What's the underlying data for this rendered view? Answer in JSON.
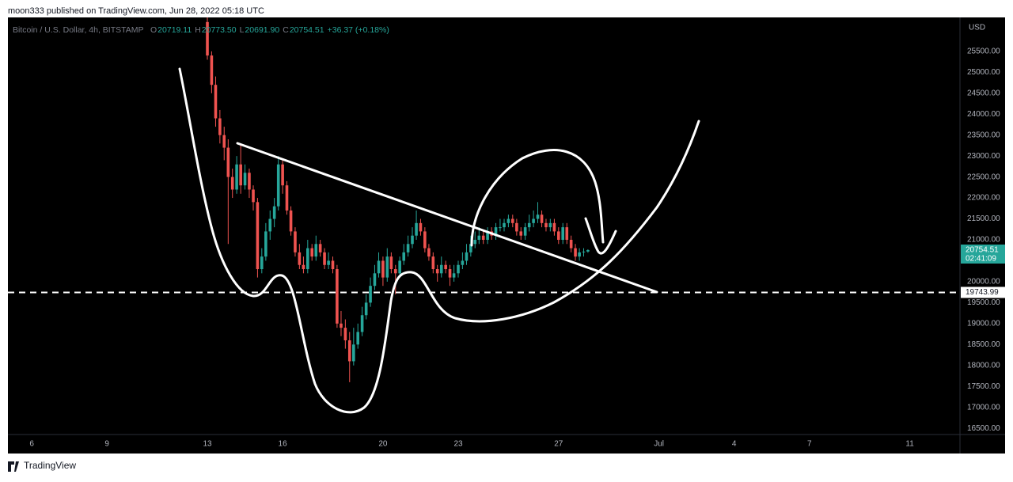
{
  "header": {
    "published": "moon333 published on TradingView.com, Jun 28, 2022 05:18 UTC"
  },
  "footer": {
    "brand": "TradingView"
  },
  "chart_data": {
    "type": "candlestick",
    "legend": {
      "symbol": "Bitcoin / U.S. Dollar, 4h, BITSTAMP",
      "items": [
        {
          "key": "O",
          "text": "20719.11"
        },
        {
          "key": "H",
          "text": "20773.50"
        },
        {
          "key": "L",
          "text": "20691.90"
        },
        {
          "key": "C",
          "text": "20754.51"
        }
      ],
      "change": "+36.37 (+0.18%)"
    },
    "y_axis_unit": "USD",
    "up_color": "#26a69a",
    "down_color": "#ef5350",
    "grid": false,
    "x": [
      13,
      13.17,
      13.33,
      13.5,
      13.67,
      13.83,
      14,
      14.17,
      14.33,
      14.5,
      14.67,
      14.83,
      15,
      15.17,
      15.33,
      15.5,
      15.67,
      15.83,
      16,
      16.17,
      16.33,
      16.5,
      16.67,
      16.83,
      17,
      17.17,
      17.33,
      17.5,
      17.67,
      17.83,
      18,
      18.17,
      18.33,
      18.5,
      18.67,
      18.83,
      19,
      19.17,
      19.33,
      19.5,
      19.67,
      19.83,
      20,
      20.17,
      20.33,
      20.5,
      20.67,
      20.83,
      21,
      21.17,
      21.33,
      21.5,
      21.67,
      21.83,
      22,
      22.17,
      22.33,
      22.5,
      22.67,
      22.83,
      23,
      23.17,
      23.33,
      23.5,
      23.67,
      23.83,
      24,
      24.17,
      24.33,
      24.5,
      24.67,
      24.83,
      25,
      25.17,
      25.33,
      25.5,
      25.67,
      25.83,
      26,
      26.17,
      26.33,
      26.5,
      26.67,
      26.83,
      27,
      27.17,
      27.33,
      27.5,
      27.67,
      27.83,
      28,
      28.17
    ],
    "open": [
      26200,
      25400,
      24700,
      23900,
      23500,
      23200,
      22500,
      22200,
      22800,
      22300,
      22600,
      22200,
      21900,
      20300,
      20600,
      21200,
      21500,
      21800,
      22800,
      22300,
      21700,
      21200,
      20700,
      20400,
      20300,
      20800,
      20600,
      20900,
      20700,
      20400,
      20500,
      20300,
      19000,
      18900,
      18600,
      18100,
      18500,
      18800,
      19200,
      19500,
      19900,
      20200,
      20500,
      20100,
      20600,
      20300,
      20200,
      20500,
      20700,
      20900,
      21100,
      21400,
      21200,
      20800,
      20600,
      20300,
      20200,
      20400,
      20300,
      20100,
      20200,
      20400,
      20500,
      20700,
      20900,
      21000,
      21100,
      21000,
      21200,
      21100,
      21300,
      21300,
      21400,
      21500,
      21400,
      21200,
      21100,
      21300,
      21400,
      21500,
      21600,
      21400,
      21300,
      21400,
      21200,
      21000,
      21300,
      21000,
      20800,
      20600,
      20700,
      20719.11
    ],
    "high": [
      26400,
      25500,
      24900,
      24100,
      23700,
      23400,
      22700,
      23000,
      23300,
      22800,
      22700,
      22300,
      22000,
      20800,
      21400,
      21700,
      22000,
      23000,
      22900,
      22400,
      21800,
      21300,
      20900,
      20600,
      21000,
      20900,
      21100,
      21000,
      20800,
      20700,
      20600,
      20400,
      19300,
      19100,
      18800,
      18900,
      19000,
      19400,
      19700,
      20100,
      20400,
      20700,
      20600,
      20800,
      20700,
      20400,
      20600,
      20900,
      21100,
      21300,
      21700,
      21500,
      21300,
      20900,
      20700,
      20400,
      20600,
      20500,
      20400,
      20400,
      20500,
      20700,
      20900,
      21100,
      21200,
      21300,
      21200,
      21300,
      21300,
      21400,
      21500,
      21500,
      21600,
      21600,
      21500,
      21300,
      21400,
      21600,
      21700,
      21900,
      21700,
      21500,
      21500,
      21500,
      21300,
      21400,
      21400,
      21100,
      20900,
      20800,
      20800,
      20773.5
    ],
    "low": [
      25300,
      24500,
      23700,
      23300,
      22900,
      20900,
      22000,
      22100,
      22100,
      22200,
      22000,
      21700,
      20100,
      20200,
      20500,
      21000,
      21300,
      21700,
      22100,
      21600,
      21100,
      20600,
      20300,
      20200,
      20200,
      20500,
      20500,
      20600,
      20300,
      20300,
      20200,
      18900,
      18700,
      18400,
      17600,
      18000,
      18400,
      18700,
      19100,
      19400,
      19800,
      20100,
      19900,
      20000,
      20200,
      19700,
      20100,
      20400,
      20600,
      20800,
      21000,
      21100,
      20700,
      20500,
      20200,
      20000,
      20100,
      20200,
      19900,
      20000,
      20100,
      20300,
      20400,
      20600,
      20800,
      20900,
      20900,
      20900,
      21000,
      21000,
      21200,
      21200,
      21300,
      21300,
      21100,
      21000,
      21000,
      21200,
      21300,
      21400,
      21300,
      21200,
      21200,
      21100,
      20900,
      20900,
      20900,
      20700,
      20500,
      20500,
      20600,
      20691.9
    ],
    "close": [
      25400,
      24700,
      23900,
      23500,
      23200,
      22500,
      22200,
      22800,
      22300,
      22600,
      22200,
      21900,
      20300,
      20600,
      21200,
      21500,
      21800,
      22800,
      22300,
      21700,
      21200,
      20700,
      20400,
      20300,
      20800,
      20600,
      20900,
      20700,
      20400,
      20500,
      20300,
      19000,
      18900,
      18600,
      18100,
      18500,
      18800,
      19200,
      19500,
      19900,
      20200,
      20500,
      20100,
      20600,
      20300,
      20200,
      20500,
      20700,
      20900,
      21100,
      21400,
      21200,
      20800,
      20600,
      20300,
      20200,
      20400,
      20300,
      20100,
      20200,
      20400,
      20500,
      20700,
      20900,
      21000,
      21100,
      21000,
      21200,
      21100,
      21300,
      21300,
      21400,
      21500,
      21400,
      21200,
      21100,
      21300,
      21400,
      21500,
      21600,
      21400,
      21300,
      21400,
      21200,
      21000,
      21300,
      21000,
      20800,
      20600,
      20700,
      20719.11,
      20754.51
    ],
    "xlim": [
      5.05,
      43.0
    ],
    "xticks": [
      6,
      9,
      13,
      16,
      20,
      23,
      27,
      {
        "value": 31,
        "label": "Jul"
      },
      {
        "value": 34,
        "label": "4"
      },
      {
        "value": 37,
        "label": "7"
      },
      {
        "value": 41,
        "label": "11"
      }
    ],
    "ylim": [
      16370,
      26310
    ],
    "yticks": [
      {
        "value": 25500,
        "label": "25500.00"
      },
      {
        "value": 25000,
        "label": "25000.00"
      },
      {
        "value": 24500,
        "label": "24500.00"
      },
      {
        "value": 24000,
        "label": "24000.00"
      },
      {
        "value": 23500,
        "label": "23500.00"
      },
      {
        "value": 23000,
        "label": "23000.00"
      },
      {
        "value": 22500,
        "label": "22500.00"
      },
      {
        "value": 22000,
        "label": "22000.00"
      },
      {
        "value": 21500,
        "label": "21500.00"
      },
      {
        "value": 21000,
        "label": "21000.00"
      },
      {
        "value": 20000,
        "label": "20000.00"
      },
      {
        "value": 19500,
        "label": "19500.00"
      },
      {
        "value": 19000,
        "label": "19000.00"
      },
      {
        "value": 18500,
        "label": "18500.00"
      },
      {
        "value": 18000,
        "label": "18000.00"
      },
      {
        "value": 17500,
        "label": "17500.00"
      },
      {
        "value": 17000,
        "label": "17000.00"
      },
      {
        "value": 16500,
        "label": "16500.00"
      }
    ],
    "last_price": 20754.51,
    "countdown": "02:41:09",
    "horizontal_line": 19743.99
  }
}
